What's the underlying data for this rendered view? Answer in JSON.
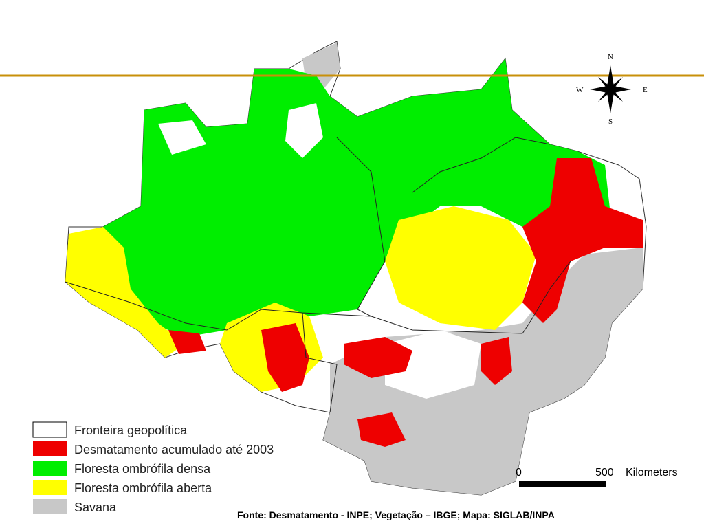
{
  "compass": {
    "north": "N",
    "south": "S",
    "east": "E",
    "west": "W"
  },
  "legend": [
    "Fronteira geopolítica",
    "Desmatamento acumulado até 2003",
    "Floresta ombrófila densa",
    "Floresta ombrófila aberta",
    "Savana"
  ],
  "scale_bar": {
    "start": 0,
    "end": 500,
    "unit": "Kilometers"
  },
  "source": "Fonte: Desmatamento - INPE; Vegetação – IBGE; Mapa: SIGLAB/INPA"
}
